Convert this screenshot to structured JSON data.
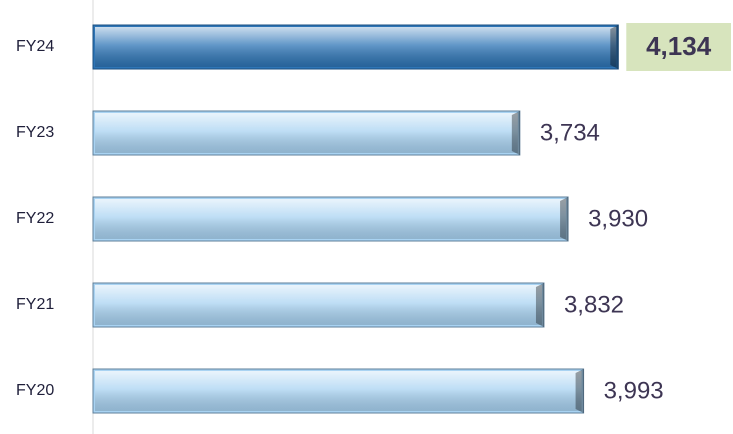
{
  "chart_data": {
    "type": "bar",
    "orientation": "horizontal",
    "categories": [
      "FY24",
      "FY23",
      "FY22",
      "FY21",
      "FY20"
    ],
    "values": [
      4134,
      3734,
      3930,
      3832,
      3993
    ],
    "value_labels": [
      "4,134",
      "3,734",
      "3,930",
      "3,832",
      "3,993"
    ],
    "color": "#a9d3f2",
    "highlight_color": "#2e75b6",
    "highlight_label_background": "#d7e4bd",
    "highlight": [
      0
    ],
    "xlim": [
      2000,
      4600
    ]
  }
}
